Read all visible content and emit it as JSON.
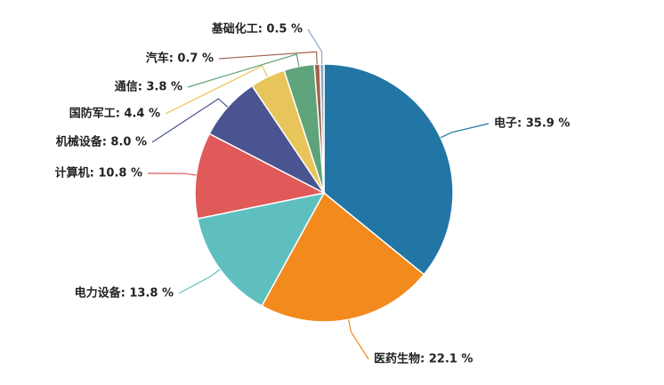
{
  "chart_data": {
    "type": "pie",
    "values": [
      35.9,
      22.1,
      13.8,
      10.8,
      8.0,
      4.4,
      3.8,
      0.7,
      0.5
    ],
    "value_labels": [
      "电子: 35.9 %",
      "医药生物: 22.1 %",
      "电力设备: 13.8 %",
      "计算机: 10.8 %",
      "机械设备: 8.0 %",
      "国防军工: 4.4 %",
      "通信: 3.8 %",
      "汽车: 0.7 %",
      "基础化工: 0.5 %"
    ],
    "colors": [
      "#2176a5",
      "#f28a1e",
      "#5fbfbf",
      "#e05a5a",
      "#4a5490",
      "#e8c55a",
      "#5fa37a",
      "#a0624a",
      "#8fa8c0"
    ]
  }
}
